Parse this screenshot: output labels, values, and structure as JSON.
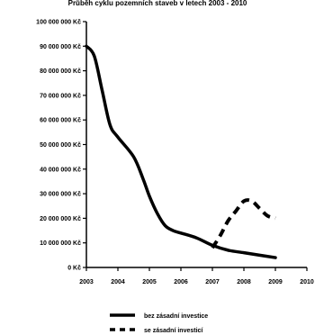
{
  "chart_data": {
    "type": "line",
    "title": "Průběh cyklu pozemních staveb v letech 2003 - 2010",
    "xlabel": "",
    "ylabel": "",
    "x": [
      2003,
      2004,
      2005,
      2006,
      2007,
      2008,
      2009,
      2010
    ],
    "x_tick_labels": [
      "2003",
      "2004",
      "2005",
      "2006",
      "2007",
      "2008",
      "2009",
      "2010"
    ],
    "ylim": [
      0,
      100000000
    ],
    "y_ticks": [
      0,
      10000000,
      20000000,
      30000000,
      40000000,
      50000000,
      60000000,
      70000000,
      80000000,
      90000000,
      100000000
    ],
    "y_tick_labels": [
      "0 Kč",
      "10 000 000 Kč",
      "20 000 000 Kč",
      "30 000 000 Kč",
      "40 000 000 Kč",
      "50 000 000 Kč",
      "60 000 000 Kč",
      "70 000 000 Kč",
      "80 000 000 Kč",
      "90 000 000 Kč",
      "100 000 000 Kč"
    ],
    "grid": false,
    "legend_position": "bottom",
    "series": [
      {
        "name": "bez zásadní investice",
        "style": "solid",
        "color": "#000000",
        "points": [
          [
            2003.0,
            90000000
          ],
          [
            2003.25,
            86000000
          ],
          [
            2003.5,
            72000000
          ],
          [
            2003.75,
            58000000
          ],
          [
            2004.0,
            53000000
          ],
          [
            2004.5,
            45000000
          ],
          [
            2004.8,
            36000000
          ],
          [
            2005.0,
            29000000
          ],
          [
            2005.25,
            22000000
          ],
          [
            2005.5,
            17000000
          ],
          [
            2005.75,
            15000000
          ],
          [
            2006.0,
            14000000
          ],
          [
            2006.5,
            12000000
          ],
          [
            2007.0,
            9000000
          ],
          [
            2007.5,
            7000000
          ],
          [
            2008.0,
            6000000
          ],
          [
            2008.5,
            5000000
          ],
          [
            2009.0,
            4000000
          ]
        ]
      },
      {
        "name": "se zásadní investicí",
        "style": "dashed",
        "color": "#000000",
        "points": [
          [
            2007.0,
            8000000
          ],
          [
            2007.25,
            13000000
          ],
          [
            2007.5,
            19000000
          ],
          [
            2007.75,
            23000000
          ],
          [
            2008.0,
            27000000
          ],
          [
            2008.25,
            27000000
          ],
          [
            2008.5,
            24000000
          ],
          [
            2008.75,
            21000000
          ],
          [
            2009.0,
            20000000
          ]
        ]
      }
    ]
  }
}
